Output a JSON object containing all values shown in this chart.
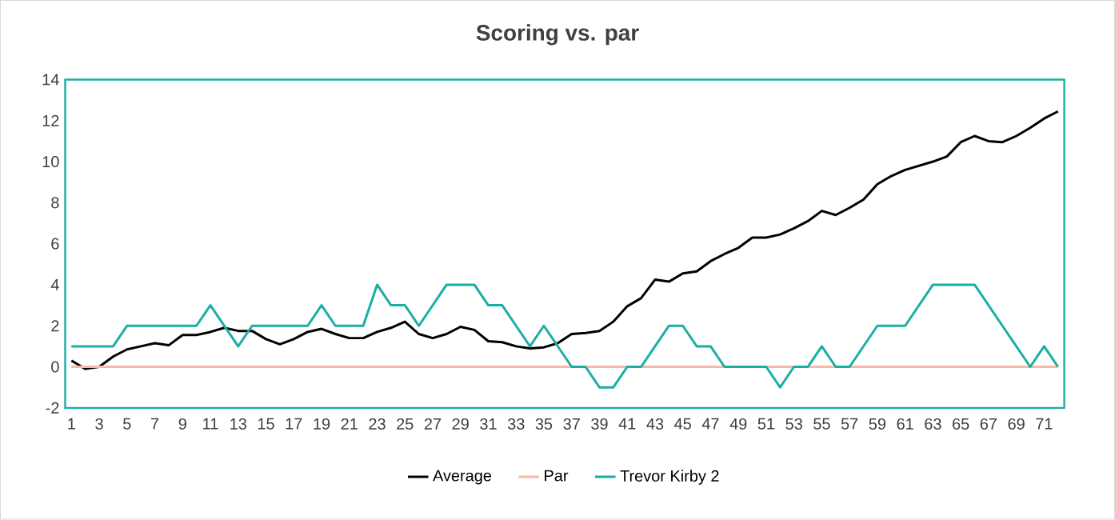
{
  "chart_data": {
    "type": "line",
    "title": "Scoring vs. par",
    "categories": [
      "1",
      null,
      "3",
      null,
      "5",
      null,
      "7",
      null,
      "9",
      null,
      "11",
      null,
      "13",
      null,
      "15",
      null,
      "17",
      null,
      "19",
      null,
      "21",
      null,
      "23",
      null,
      "25",
      null,
      "27",
      null,
      "29",
      null,
      "31",
      null,
      "33",
      null,
      "35",
      null,
      "37",
      null,
      "39",
      null,
      "41",
      null,
      "43",
      null,
      "45",
      null,
      "47",
      null,
      "49",
      null,
      "51",
      null,
      "53",
      null,
      "55",
      null,
      "57",
      null,
      "59",
      null,
      "61",
      null,
      "63",
      null,
      "65",
      null,
      "67",
      null,
      "69",
      null,
      "71",
      null
    ],
    "series": [
      {
        "name": "Average",
        "color": "#000000",
        "values": [
          0.3,
          -0.1,
          0.0,
          0.5,
          0.85,
          1.0,
          1.15,
          1.05,
          1.55,
          1.55,
          1.7,
          1.9,
          1.75,
          1.75,
          1.35,
          1.1,
          1.35,
          1.7,
          1.85,
          1.6,
          1.4,
          1.4,
          1.7,
          1.9,
          2.2,
          1.6,
          1.4,
          1.6,
          1.95,
          1.8,
          1.25,
          1.2,
          1.0,
          0.9,
          0.95,
          1.15,
          1.6,
          1.65,
          1.75,
          2.2,
          2.95,
          3.35,
          4.25,
          4.15,
          4.55,
          4.65,
          5.15,
          5.5,
          5.8,
          6.3,
          6.3,
          6.45,
          6.75,
          7.1,
          7.6,
          7.4,
          7.75,
          8.15,
          8.9,
          9.3,
          9.6,
          9.8,
          10.0,
          10.25,
          10.95,
          11.25,
          11.0,
          10.95,
          11.25,
          11.65,
          12.1,
          12.45
        ]
      },
      {
        "name": "Par",
        "color": "#f8b9a6",
        "values": [
          0,
          0,
          0,
          0,
          0,
          0,
          0,
          0,
          0,
          0,
          0,
          0,
          0,
          0,
          0,
          0,
          0,
          0,
          0,
          0,
          0,
          0,
          0,
          0,
          0,
          0,
          0,
          0,
          0,
          0,
          0,
          0,
          0,
          0,
          0,
          0,
          0,
          0,
          0,
          0,
          0,
          0,
          0,
          0,
          0,
          0,
          0,
          0,
          0,
          0,
          0,
          0,
          0,
          0,
          0,
          0,
          0,
          0,
          0,
          0,
          0,
          0,
          0,
          0,
          0,
          0,
          0,
          0,
          0,
          0,
          0,
          0
        ]
      },
      {
        "name": "Trevor Kirby 2",
        "color": "#1aaea4",
        "values": [
          1,
          1,
          1,
          1,
          2,
          2,
          2,
          2,
          2,
          2,
          3,
          2,
          1,
          2,
          2,
          2,
          2,
          2,
          3,
          2,
          2,
          2,
          4,
          3,
          3,
          2,
          3,
          4,
          4,
          4,
          3,
          3,
          2,
          1,
          2,
          1,
          0,
          0,
          -1,
          -1,
          0,
          0,
          1,
          2,
          2,
          1,
          1,
          0,
          0,
          0,
          0,
          -1,
          0,
          0,
          1,
          0,
          0,
          1,
          2,
          2,
          2,
          3,
          4,
          4,
          4,
          4,
          3,
          2,
          1,
          0,
          1,
          0
        ]
      }
    ],
    "ylim": [
      -2,
      14
    ],
    "yticks": [
      -2,
      0,
      2,
      4,
      6,
      8,
      10,
      12,
      14
    ],
    "legend": "bottom"
  }
}
